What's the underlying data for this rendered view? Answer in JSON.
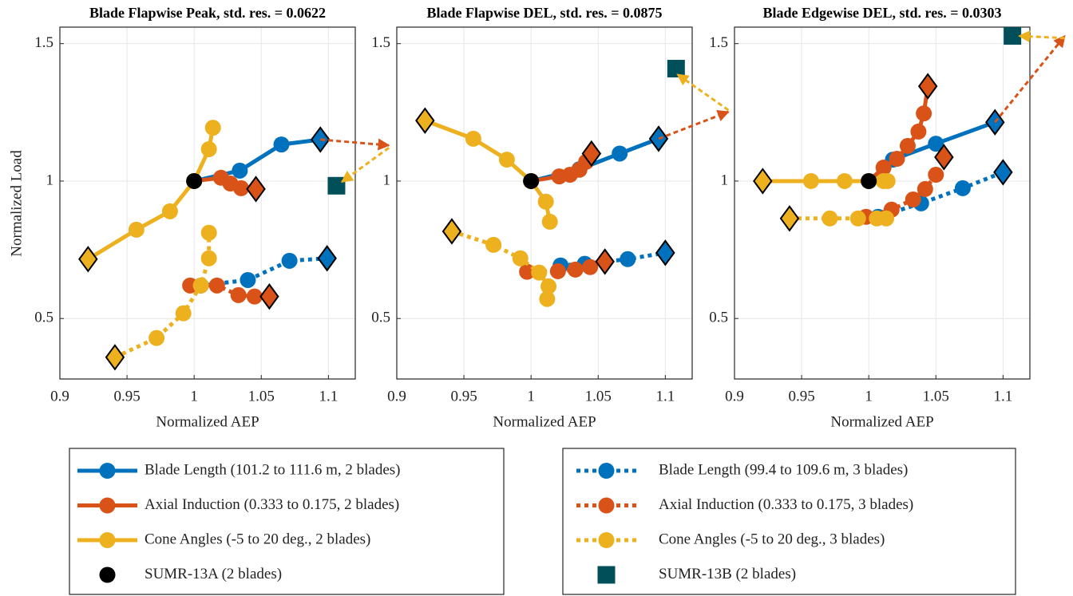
{
  "legend": [
    [
      {
        "name": "Blade Length (101.2 to 111.6 m, 2 blades)",
        "color": "#0072BD",
        "line": "solid",
        "marker": "circle"
      },
      {
        "name": "Axial Induction (0.333 to 0.175, 2 blades)",
        "color": "#D95319",
        "line": "solid",
        "marker": "circle"
      },
      {
        "name": "Cone Angles (-5 to 20 deg., 2 blades)",
        "color": "#EDB120",
        "line": "solid",
        "marker": "circle"
      },
      {
        "name": "SUMR-13A (2 blades)",
        "color": "#000000",
        "line": "none",
        "marker": "circle"
      }
    ],
    [
      {
        "name": "Blade Length (99.4 to 109.6 m, 3 blades)",
        "color": "#0072BD",
        "line": "dotted",
        "marker": "circle"
      },
      {
        "name": "Axial Induction (0.333 to 0.175, 3 blades)",
        "color": "#D95319",
        "line": "dotted",
        "marker": "circle"
      },
      {
        "name": "Cone Angles (-5 to 20 deg., 3 blades)",
        "color": "#EDB120",
        "line": "dotted",
        "marker": "circle"
      },
      {
        "name": "SUMR-13B (2 blades)",
        "color": "#004F59",
        "line": "none",
        "marker": "square"
      }
    ]
  ],
  "chart_data": [
    {
      "type": "line",
      "title": "Blade Flapwise Peak, std. res. = 0.0622",
      "xlabel": "Normalized AEP",
      "ylabel": "Normalized Load",
      "xlim": [
        0.9,
        1.12
      ],
      "ylim": [
        0.28,
        1.56
      ],
      "xticks": [
        0.9,
        0.95,
        1,
        1.05,
        1.1
      ],
      "yticks": [
        0.5,
        1,
        1.5
      ],
      "grid": true,
      "series": [
        {
          "x": [
            1,
            1.034,
            1.065,
            1.094
          ],
          "values": [
            1,
            1.038,
            1.133,
            1.151
          ],
          "diamond_at": 3
        },
        {
          "x": [
            1,
            1.02,
            1.027,
            1.035,
            1.046
          ],
          "values": [
            1,
            1.012,
            0.991,
            0.974,
            0.971
          ],
          "diamond_at": 4
        },
        {
          "x": [
            0.921,
            0.957,
            0.982,
            1,
            1.011,
            1.014
          ],
          "values": [
            0.716,
            0.823,
            0.89,
            1,
            1.116,
            1.194
          ],
          "diamond_at": 0
        },
        {
          "x": [
            1
          ],
          "values": [
            1
          ]
        },
        {
          "x": [
            1.005,
            1.04,
            1.071,
            1.099
          ],
          "values": [
            0.62,
            0.64,
            0.71,
            0.719
          ],
          "diamond_at": 3
        },
        {
          "x": [
            0.997,
            1.017,
            1.033,
            1.045,
            1.056
          ],
          "values": [
            0.62,
            0.62,
            0.585,
            0.58,
            0.58
          ],
          "diamond_at": 4
        },
        {
          "x": [
            0.941,
            0.972,
            0.992,
            1.005,
            1.011,
            1.011
          ],
          "values": [
            0.359,
            0.429,
            0.519,
            0.62,
            0.719,
            0.812
          ],
          "diamond_at": 0
        },
        {
          "x": [
            1.106
          ],
          "values": [
            0.983
          ]
        }
      ],
      "arrows": [
        {
          "color": "#D95319",
          "x": [
            1.094,
            1.145
          ],
          "values": [
            1.151,
            1.13
          ]
        },
        {
          "color": "#EDB120",
          "x": [
            1.145,
            1.11
          ],
          "values": [
            1.121,
            0.997
          ]
        }
      ]
    },
    {
      "type": "line",
      "title": "Blade Flapwise DEL, std. res. = 0.0875",
      "xlabel": "Normalized AEP",
      "xlim": [
        0.9,
        1.12
      ],
      "ylim": [
        0.28,
        1.56
      ],
      "xticks": [
        0.9,
        0.95,
        1,
        1.05,
        1.1
      ],
      "yticks": [
        0.5,
        1,
        1.5
      ],
      "grid": true,
      "series": [
        {
          "x": [
            1,
            1.036,
            1.066,
            1.095
          ],
          "values": [
            1,
            1.043,
            1.1,
            1.154
          ],
          "diamond_at": 3
        },
        {
          "x": [
            1,
            1.021,
            1.029,
            1.036,
            1.041,
            1.045
          ],
          "values": [
            1,
            1.017,
            1.023,
            1.041,
            1.07,
            1.1
          ],
          "diamond_at": 5
        },
        {
          "x": [
            0.921,
            0.957,
            0.982,
            1,
            1.011,
            1.014
          ],
          "values": [
            1.22,
            1.154,
            1.078,
            1,
            0.925,
            0.852
          ],
          "diamond_at": 0
        },
        {
          "x": [
            1
          ],
          "values": [
            1
          ]
        },
        {
          "x": [
            1.022,
            1.04,
            1.072,
            1.1
          ],
          "values": [
            0.693,
            0.699,
            0.716,
            0.739
          ],
          "diamond_at": 3
        },
        {
          "x": [
            0.997,
            1.02,
            1.033,
            1.044,
            1.055
          ],
          "values": [
            0.67,
            0.672,
            0.678,
            0.687,
            0.707
          ],
          "diamond_at": 4
        },
        {
          "x": [
            0.941,
            0.972,
            0.992,
            1.006,
            1.013,
            1.012
          ],
          "values": [
            0.817,
            0.768,
            0.719,
            0.667,
            0.617,
            0.571
          ],
          "diamond_at": 0
        },
        {
          "x": [
            1.108
          ],
          "values": [
            1.409
          ]
        }
      ],
      "arrows": [
        {
          "color": "#D95319",
          "x": [
            1.095,
            1.147
          ],
          "values": [
            1.154,
            1.252
          ]
        },
        {
          "color": "#EDB120",
          "x": [
            1.147,
            1.109
          ],
          "values": [
            1.258,
            1.388
          ]
        }
      ]
    },
    {
      "type": "line",
      "title": "Blade Edgewise DEL, std. res. = 0.0303",
      "xlabel": "Normalized AEP",
      "xlim": [
        0.9,
        1.12
      ],
      "ylim": [
        0.28,
        1.56
      ],
      "xticks": [
        0.9,
        0.95,
        1,
        1.05,
        1.1
      ],
      "yticks": [
        0.5,
        1,
        1.5
      ],
      "grid": true,
      "series": [
        {
          "x": [
            1,
            1.018,
            1.05,
            1.094
          ],
          "values": [
            1,
            1.078,
            1.136,
            1.214
          ],
          "diamond_at": 3
        },
        {
          "x": [
            1,
            1.011,
            1.021,
            1.029,
            1.037,
            1.041,
            1.044
          ],
          "values": [
            1,
            1.049,
            1.081,
            1.128,
            1.18,
            1.246,
            1.345
          ],
          "diamond_at": 6
        },
        {
          "x": [
            0.921,
            0.957,
            0.982,
            1,
            1.011,
            1.014
          ],
          "values": [
            1,
            1,
            1,
            1,
            1,
            1
          ],
          "diamond_at": 0
        },
        {
          "x": [
            1
          ],
          "values": [
            1
          ]
        },
        {
          "x": [
            1.007,
            1.039,
            1.07,
            1.1
          ],
          "values": [
            0.87,
            0.919,
            0.974,
            1.032
          ],
          "diamond_at": 3
        },
        {
          "x": [
            0.998,
            1.017,
            1.033,
            1.042,
            1.05,
            1.056
          ],
          "values": [
            0.87,
            0.896,
            0.933,
            0.971,
            1.023,
            1.087
          ],
          "diamond_at": 5
        },
        {
          "x": [
            0.941,
            0.971,
            0.992,
            1.006,
            1.013
          ],
          "values": [
            0.864,
            0.864,
            0.864,
            0.864,
            0.864
          ],
          "diamond_at": 0
        },
        {
          "x": [
            1.107
          ],
          "values": [
            1.528
          ]
        }
      ],
      "arrows": [
        {
          "color": "#D95319",
          "x": [
            1.094,
            1.146
          ],
          "values": [
            1.214,
            1.528
          ]
        },
        {
          "color": "#EDB120",
          "x": [
            1.146,
            1.112
          ],
          "values": [
            1.52,
            1.528
          ]
        }
      ]
    }
  ]
}
